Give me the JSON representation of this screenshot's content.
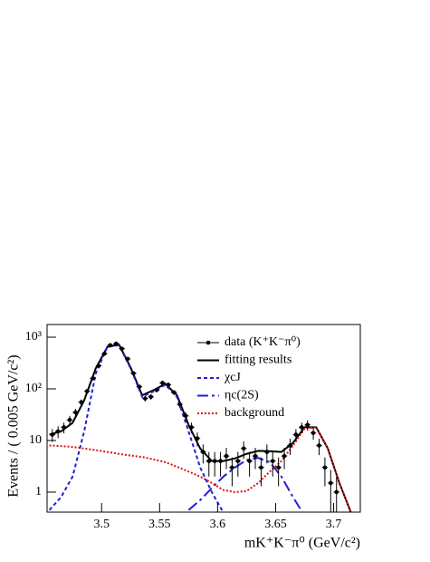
{
  "chart_data": {
    "type": "line",
    "x_label": "mK⁺K⁻π⁰ (GeV/c²)",
    "y_label": "Events / ( 0.005 GeV/c²)",
    "log_y": true,
    "xlim": [
      3.453,
      3.723
    ],
    "ylim": [
      0.41,
      1760
    ],
    "xticks": [
      3.5,
      3.55,
      3.6,
      3.65,
      3.7
    ],
    "yticks": [
      1,
      10,
      {
        "value": 100,
        "label": "10²"
      },
      {
        "value": 1000,
        "label": "10³"
      }
    ],
    "legend": "top-right",
    "data_points": {
      "name": "data (K⁺K⁻π⁰)",
      "color": "#000000",
      "bin_width": 0.005,
      "x": [
        3.4575,
        3.4625,
        3.4675,
        3.4725,
        3.4775,
        3.4825,
        3.4875,
        3.4925,
        3.4975,
        3.5025,
        3.5075,
        3.5125,
        3.5175,
        3.5225,
        3.5275,
        3.5325,
        3.5375,
        3.5425,
        3.5475,
        3.5525,
        3.5575,
        3.5625,
        3.5675,
        3.5725,
        3.5775,
        3.5825,
        3.5875,
        3.5925,
        3.5975,
        3.6025,
        3.6075,
        3.6125,
        3.6175,
        3.6225,
        3.6275,
        3.6325,
        3.6375,
        3.6425,
        3.6475,
        3.6525,
        3.6575,
        3.6625,
        3.6675,
        3.6725,
        3.6775,
        3.6825,
        3.6875,
        3.6925,
        3.6975,
        3.7025
      ],
      "values": [
        13,
        15,
        18,
        25,
        35,
        55,
        90,
        160,
        280,
        480,
        700,
        750,
        600,
        380,
        200,
        110,
        65,
        70,
        95,
        130,
        120,
        85,
        50,
        30,
        18,
        11,
        6,
        4,
        4,
        4,
        5,
        3,
        4,
        7,
        4,
        5,
        3,
        6,
        4,
        3,
        5,
        8,
        13,
        18,
        20,
        14,
        8,
        3,
        1.5,
        1
      ],
      "errors": [
        3.6,
        3.9,
        4.2,
        5,
        5.9,
        7.4,
        9.5,
        12.6,
        16.7,
        21.9,
        26.5,
        27.4,
        24.5,
        19.5,
        14.1,
        10.5,
        8.1,
        8.4,
        9.7,
        11.4,
        11,
        9.2,
        7.1,
        5.5,
        4.2,
        3.3,
        2.4,
        2,
        2,
        2,
        2.2,
        1.7,
        2,
        2.6,
        2,
        2.2,
        1.7,
        2.4,
        2,
        1.7,
        2.2,
        2.8,
        3.6,
        4.2,
        4.5,
        3.7,
        2.8,
        1.7,
        1.2,
        1
      ]
    },
    "x": [
      3.455,
      3.465,
      3.475,
      3.485,
      3.495,
      3.505,
      3.515,
      3.525,
      3.535,
      3.545,
      3.555,
      3.565,
      3.575,
      3.585,
      3.595,
      3.605,
      3.615,
      3.625,
      3.635,
      3.645,
      3.655,
      3.665,
      3.675,
      3.685,
      3.695,
      3.705,
      3.715
    ],
    "series": [
      {
        "name": "fitting results",
        "color": "#000000",
        "dash": "solid",
        "values": [
          13,
          15,
          22,
          60,
          250,
          650,
          720,
          260,
          75,
          95,
          125,
          75,
          20,
          7,
          4,
          4,
          4.5,
          5.5,
          6.3,
          6.2,
          6,
          9,
          18,
          18,
          7,
          1.5,
          0.4
        ]
      },
      {
        "name": "χcJ",
        "color": "#1f1fd6",
        "dash": "short",
        "values": [
          0.45,
          0.8,
          2,
          15,
          200,
          650,
          700,
          250,
          70,
          90,
          120,
          70,
          15,
          3,
          1,
          0.4,
          null,
          null,
          null,
          null,
          null,
          null,
          null,
          null,
          null,
          null,
          null
        ]
      },
      {
        "name": "ηc(2S)",
        "color": "#1f1fd6",
        "dash": "long",
        "values": [
          null,
          null,
          null,
          null,
          null,
          null,
          null,
          null,
          null,
          null,
          null,
          null,
          0.45,
          0.7,
          1.2,
          2,
          3,
          4.2,
          4.6,
          3.8,
          2,
          0.8,
          0.35,
          null,
          null,
          null,
          null
        ]
      },
      {
        "name": "background",
        "color": "#e01010",
        "dash": "dotted",
        "values": [
          8,
          7.8,
          7.5,
          7,
          6.5,
          6,
          5.5,
          5.1,
          4.8,
          4.3,
          3.8,
          3.1,
          2.5,
          2,
          1.5,
          1.1,
          1,
          1.05,
          1.5,
          2.5,
          4,
          8,
          17,
          18,
          7,
          1.5,
          0.4
        ]
      }
    ]
  }
}
